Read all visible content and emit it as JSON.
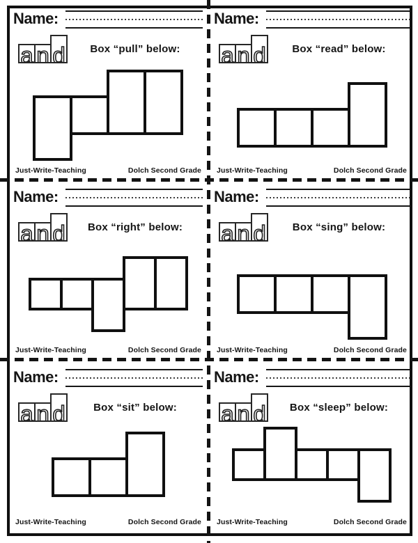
{
  "colors": {
    "ink": "#111111",
    "paper": "#ffffff"
  },
  "logo": {
    "word": "and",
    "letters": [
      {
        "char": "a",
        "box": "short"
      },
      {
        "char": "n",
        "box": "short"
      },
      {
        "char": "d",
        "box": "tall"
      }
    ]
  },
  "panels": [
    {
      "name_label": "Name:",
      "word": "pull",
      "prompt": "Box “pull” below:",
      "boxes": [
        "descender",
        "short",
        "tall",
        "tall"
      ],
      "footer_left": "Just-Write-Teaching",
      "footer_right": "Dolch Second Grade"
    },
    {
      "name_label": "Name:",
      "word": "read",
      "prompt": "Box “read” below:",
      "boxes": [
        "short",
        "short",
        "short",
        "tall"
      ],
      "footer_left": "Just-Write-Teaching",
      "footer_right": "Dolch Second Grade"
    },
    {
      "name_label": "Name:",
      "word": "right",
      "prompt": "Box “right” below:",
      "boxes": [
        "short",
        "short",
        "descender",
        "tall",
        "tall"
      ],
      "footer_left": "Just-Write-Teaching",
      "footer_right": "Dolch Second Grade"
    },
    {
      "name_label": "Name:",
      "word": "sing",
      "prompt": "Box “sing” below:",
      "boxes": [
        "short",
        "short",
        "short",
        "descender"
      ],
      "footer_left": "Just-Write-Teaching",
      "footer_right": "Dolch Second Grade"
    },
    {
      "name_label": "Name:",
      "word": "sit",
      "prompt": "Box “sit” below:",
      "boxes": [
        "short",
        "short",
        "tall"
      ],
      "footer_left": "Just-Write-Teaching",
      "footer_right": "Dolch Second Grade"
    },
    {
      "name_label": "Name:",
      "word": "sleep",
      "prompt": "Box “sleep” below:",
      "boxes": [
        "short",
        "tall",
        "short",
        "short",
        "descender"
      ],
      "footer_left": "Just-Write-Teaching",
      "footer_right": "Dolch Second Grade"
    }
  ]
}
